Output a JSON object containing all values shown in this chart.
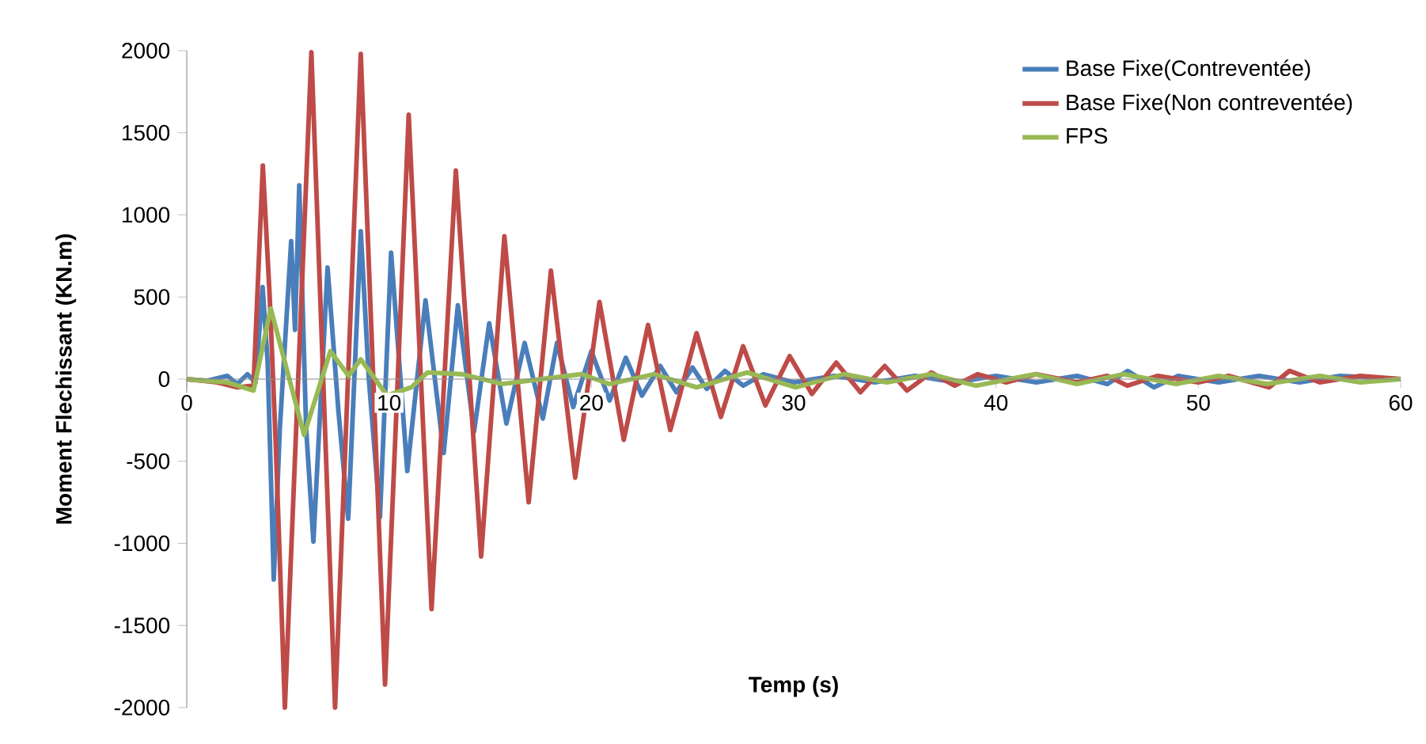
{
  "chart_data": {
    "type": "line",
    "xlabel": "Temp (s)",
    "ylabel": "Moment Flechissant (KN.m)",
    "xlim": [
      0,
      60
    ],
    "ylim": [
      -2000,
      2000
    ],
    "xticks": [
      0,
      10,
      20,
      30,
      40,
      50,
      60
    ],
    "yticks": [
      -2000,
      -1500,
      -1000,
      -500,
      0,
      500,
      1000,
      1500,
      2000
    ],
    "legend": "top right",
    "series": [
      {
        "name": "Base Fixe(Contreventée)",
        "color": "#4a7ebb",
        "x": [
          0,
          1,
          2,
          2.5,
          3,
          3.4,
          3.75,
          4.0,
          4.3,
          4.6,
          5.16,
          5.35,
          5.56,
          5.9,
          6.26,
          6.96,
          7.5,
          7.98,
          8.6,
          9.0,
          9.55,
          10.1,
          10.9,
          11.8,
          12.7,
          13.4,
          14.2,
          14.95,
          15.8,
          16.7,
          17.6,
          18.3,
          19.1,
          20.0,
          20.9,
          21.7,
          22.5,
          23.4,
          24.2,
          25.0,
          25.7,
          26.6,
          27.5,
          28.5,
          30,
          32,
          34,
          36,
          38,
          40,
          42,
          44,
          45.5,
          46.5,
          47.8,
          49,
          51,
          53,
          55,
          57,
          60
        ],
        "values": [
          0,
          -10,
          20,
          -30,
          30,
          -20,
          560,
          100,
          -1220,
          -300,
          840,
          300,
          1180,
          -300,
          -990,
          680,
          -200,
          -850,
          900,
          0,
          -840,
          770,
          -560,
          480,
          -450,
          450,
          -320,
          340,
          -270,
          220,
          -240,
          220,
          -170,
          170,
          -130,
          130,
          -100,
          80,
          -80,
          70,
          -60,
          50,
          -40,
          30,
          -20,
          20,
          -20,
          20,
          -20,
          20,
          -20,
          20,
          -30,
          50,
          -50,
          20,
          -20,
          20,
          -20,
          20,
          0
        ]
      },
      {
        "name": "Base Fixe(Non contreventée)",
        "color": "#be4b48",
        "x": [
          0,
          1.5,
          2.5,
          3.3,
          3.76,
          4.1,
          4.4,
          4.85,
          6.16,
          7.33,
          8.6,
          9.8,
          10.97,
          12.1,
          13.3,
          14.55,
          15.7,
          16.9,
          18.0,
          19.2,
          20.4,
          21.6,
          22.8,
          23.9,
          25.2,
          26.4,
          27.5,
          28.6,
          29.8,
          30.9,
          32.1,
          33.3,
          34.5,
          35.6,
          36.8,
          37.95,
          39.1,
          40.5,
          42,
          44,
          45.5,
          46.5,
          48,
          50,
          51.5,
          53.5,
          54.5,
          56,
          58,
          60
        ],
        "values": [
          0,
          -20,
          -50,
          -40,
          1300,
          500,
          -400,
          -2000,
          1990,
          -2000,
          1980,
          -1860,
          1610,
          -1400,
          1270,
          -1080,
          870,
          -750,
          660,
          -600,
          470,
          -370,
          330,
          -310,
          280,
          -230,
          200,
          -160,
          140,
          -90,
          100,
          -80,
          80,
          -70,
          40,
          -40,
          30,
          -20,
          30,
          -20,
          20,
          -40,
          20,
          -20,
          20,
          -50,
          50,
          -20,
          20,
          0
        ]
      },
      {
        "name": "FPS",
        "color": "#98b954",
        "x": [
          0,
          2,
          3.3,
          4.15,
          5.8,
          7.1,
          8.0,
          8.6,
          9.9,
          11.1,
          11.9,
          13.6,
          15.6,
          19.5,
          20.9,
          23.1,
          25.2,
          27.7,
          30.1,
          32.5,
          34.6,
          36.8,
          39.0,
          41.9,
          44,
          46.3,
          48.9,
          51,
          53.4,
          56,
          58,
          60
        ],
        "values": [
          0,
          -20,
          -70,
          430,
          -340,
          170,
          20,
          120,
          -100,
          -50,
          40,
          30,
          -30,
          30,
          -30,
          30,
          -50,
          40,
          -50,
          30,
          -20,
          30,
          -40,
          30,
          -30,
          30,
          -30,
          20,
          -30,
          20,
          -20,
          0
        ]
      }
    ]
  }
}
